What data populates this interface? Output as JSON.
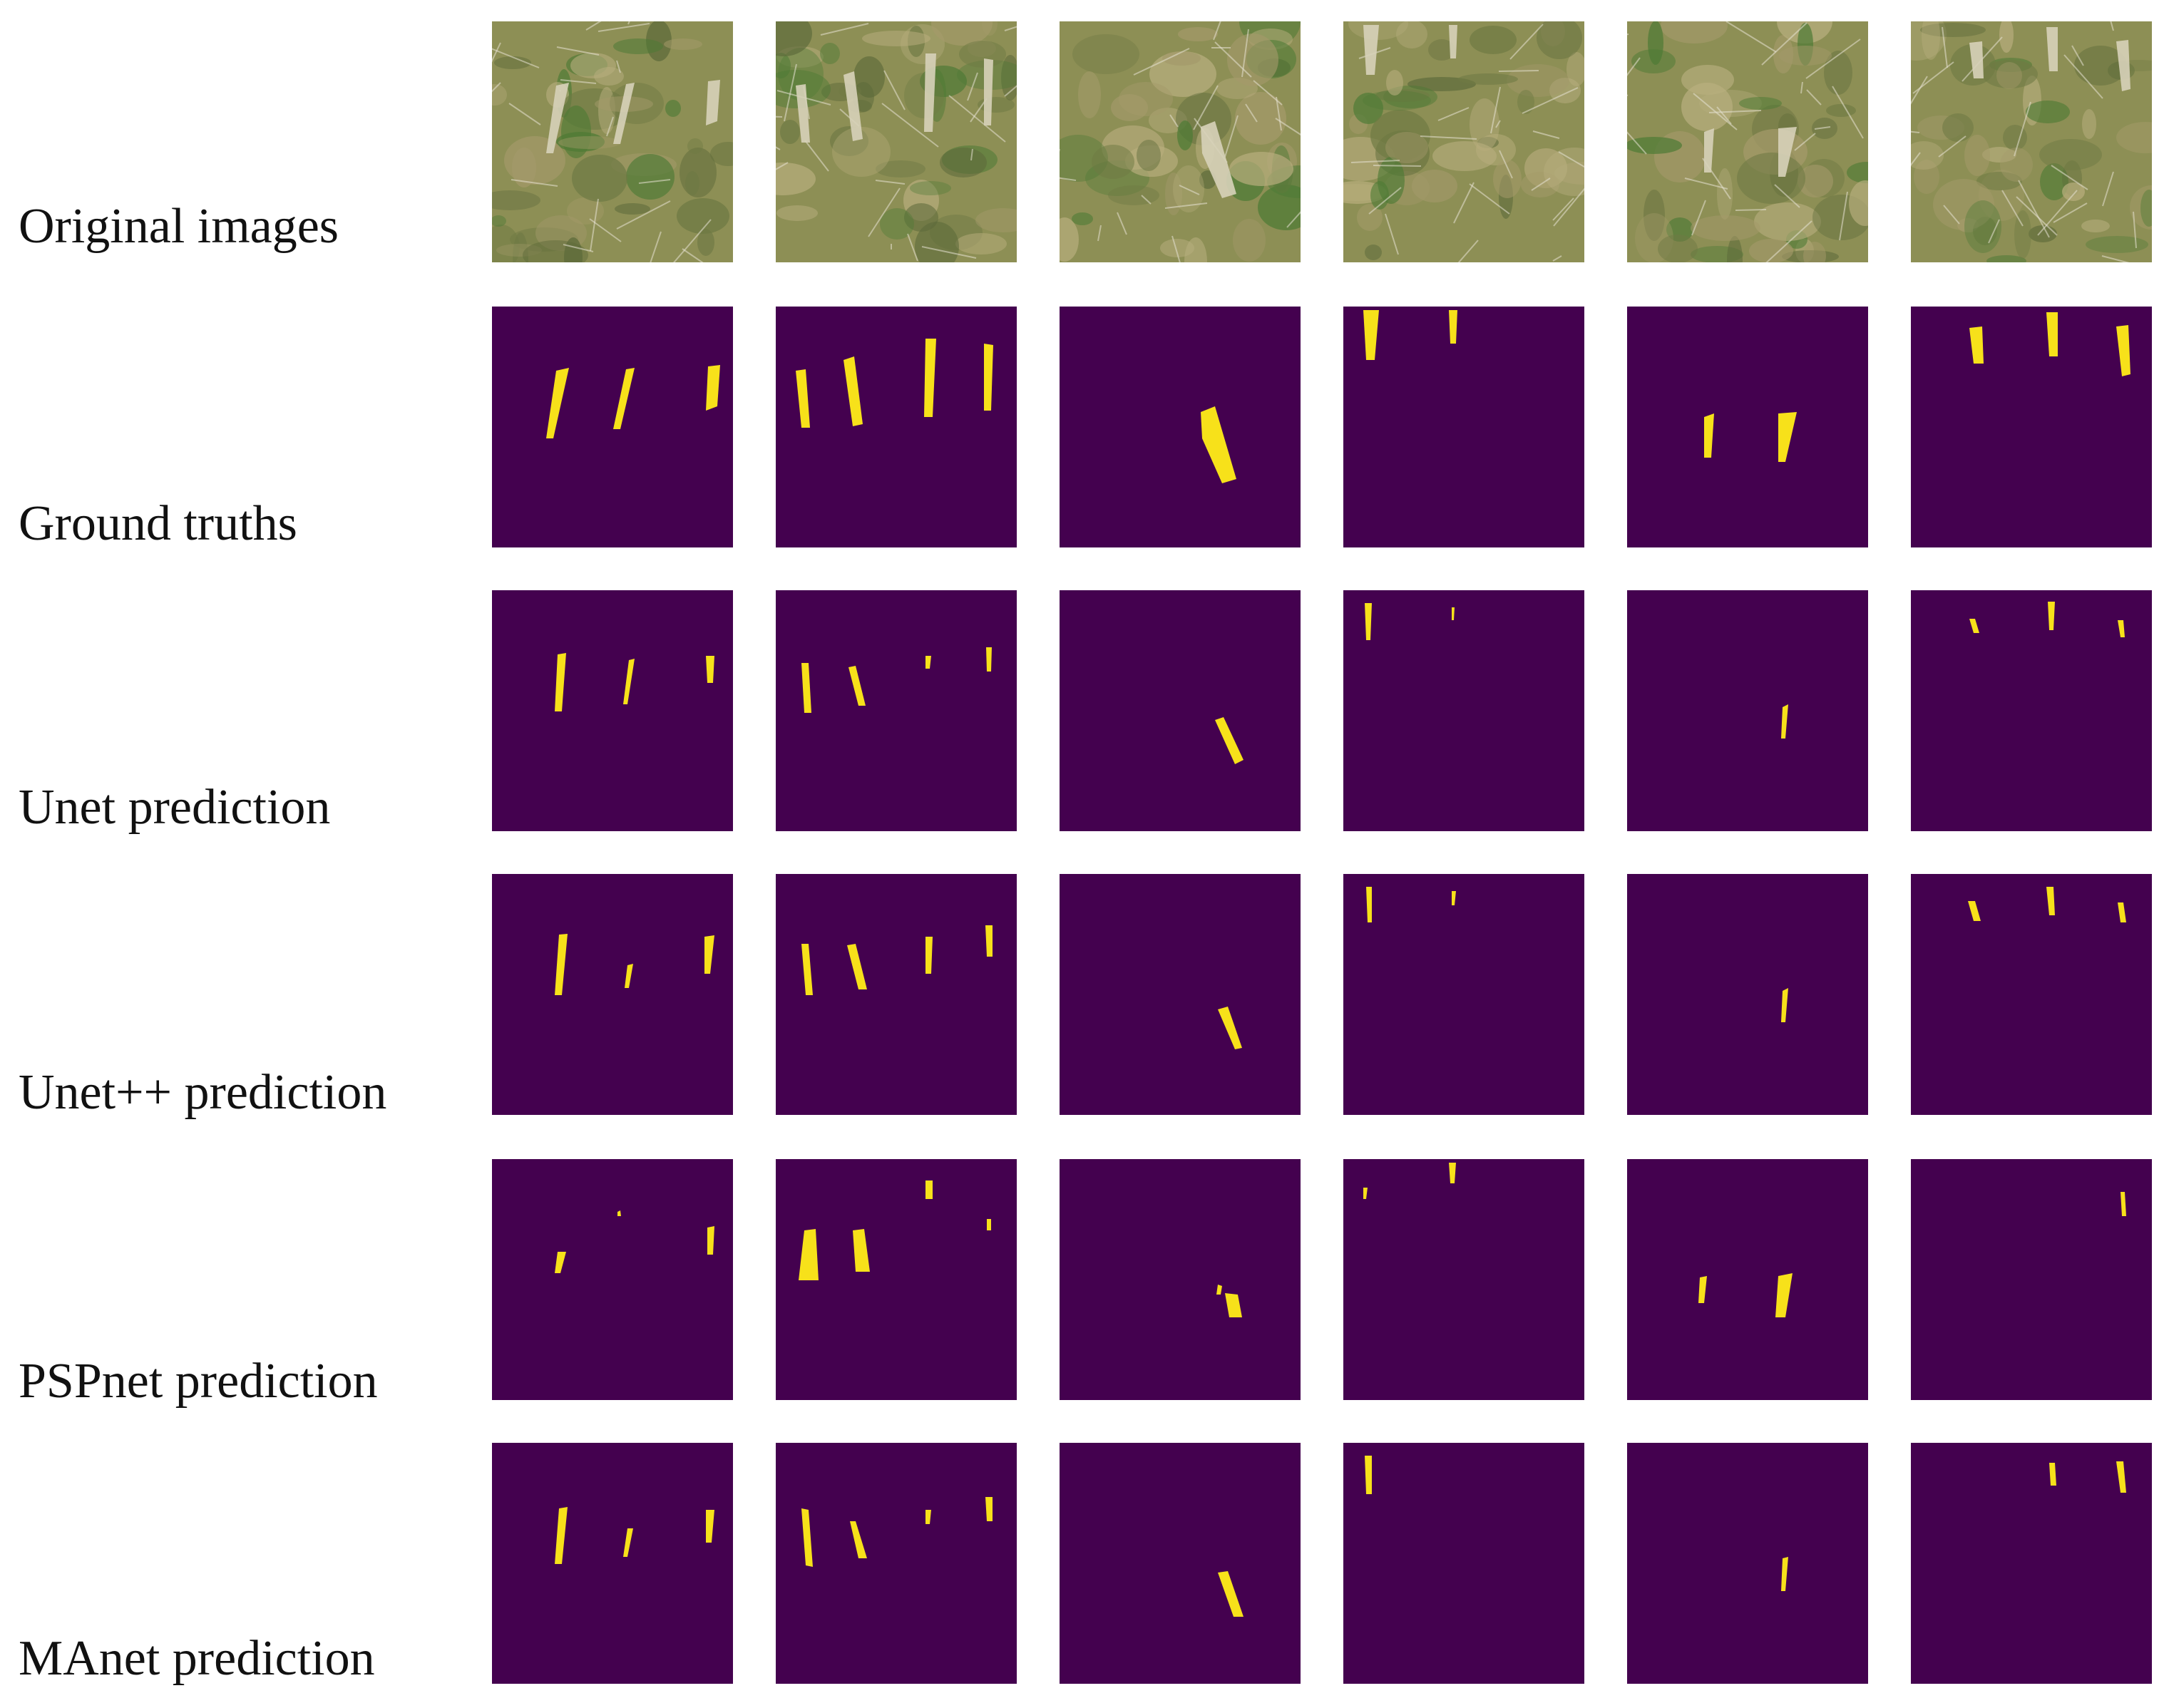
{
  "figure": {
    "rows": [
      {
        "label": "Original images",
        "kind": "photo"
      },
      {
        "label": "Ground truths",
        "kind": "mask"
      },
      {
        "label": "Unet prediction",
        "kind": "mask"
      },
      {
        "label": "Unet++ prediction",
        "kind": "mask"
      },
      {
        "label": "PSPnet prediction",
        "kind": "mask"
      },
      {
        "label": "MAnet prediction",
        "kind": "mask"
      }
    ],
    "column_count": 6,
    "colors": {
      "mask_background": "#44014f",
      "mask_foreground": "#f7e11a",
      "photo_base": "#8d8f55",
      "photo_green": "#4d7a35",
      "photo_trunk": "#d7d2b9"
    }
  }
}
